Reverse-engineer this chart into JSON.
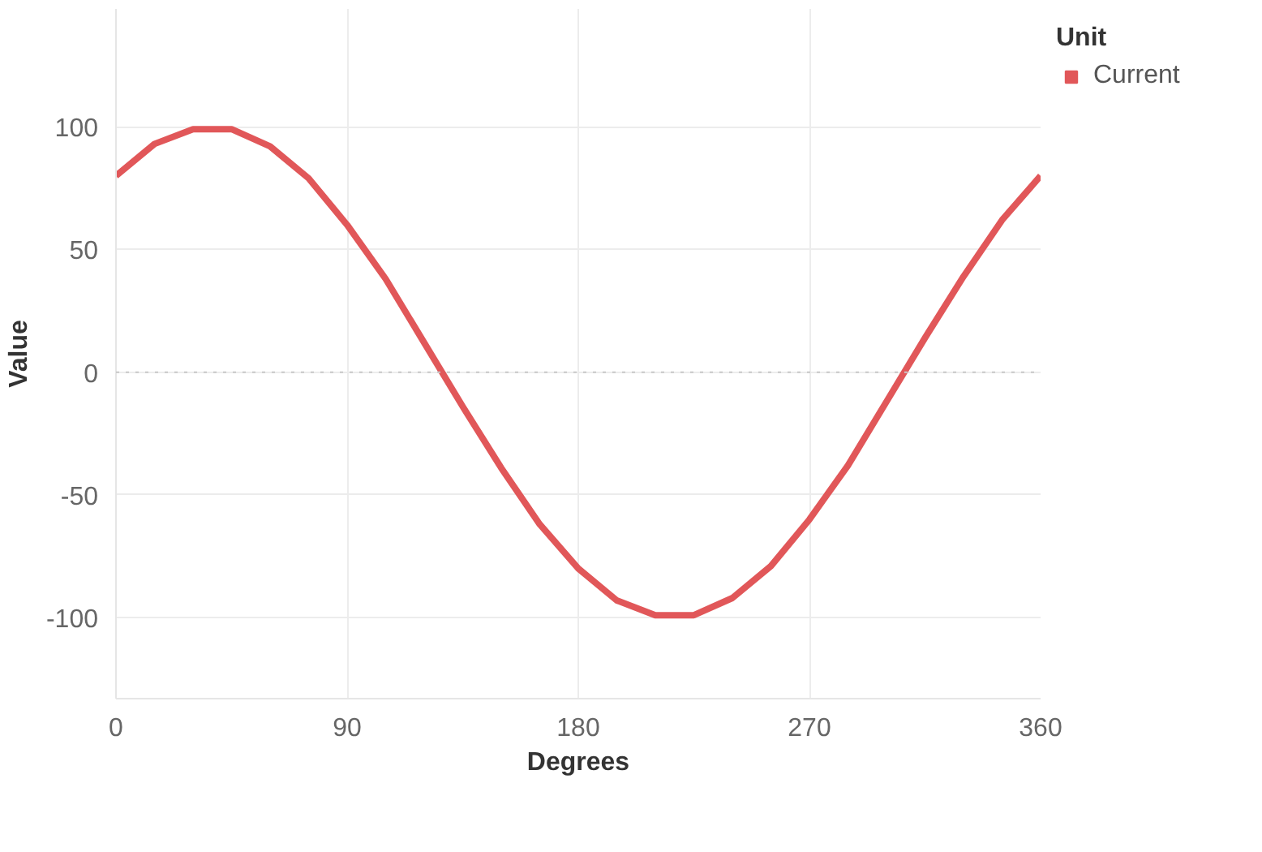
{
  "chart_data": {
    "type": "line",
    "xlabel": "Degrees",
    "ylabel": "Value",
    "legend_title": "Unit",
    "x": [
      0,
      15,
      30,
      45,
      60,
      75,
      90,
      105,
      120,
      135,
      150,
      165,
      180,
      195,
      210,
      225,
      240,
      255,
      270,
      285,
      300,
      315,
      330,
      345,
      360
    ],
    "series": [
      {
        "name": "Current",
        "color": "#e15759",
        "values": [
          80,
          93,
          99,
          99,
          92,
          79,
          60,
          38,
          12,
          -14,
          -39,
          -62,
          -80,
          -93,
          -99,
          -99,
          -92,
          -79,
          -60,
          -38,
          -12,
          14,
          39,
          62,
          80
        ]
      }
    ],
    "xlim": [
      0,
      360
    ],
    "xticks": [
      0,
      90,
      180,
      270,
      360
    ],
    "ylim": [
      -133,
      148
    ],
    "yticks": [
      -100,
      -50,
      0,
      50,
      100
    ],
    "ref_lines": [
      {
        "axis": "y",
        "value": 0,
        "color": "#c8c8c8",
        "line_style": "dotted"
      }
    ],
    "grid": true,
    "legend": "top right",
    "line_style": "solid"
  }
}
